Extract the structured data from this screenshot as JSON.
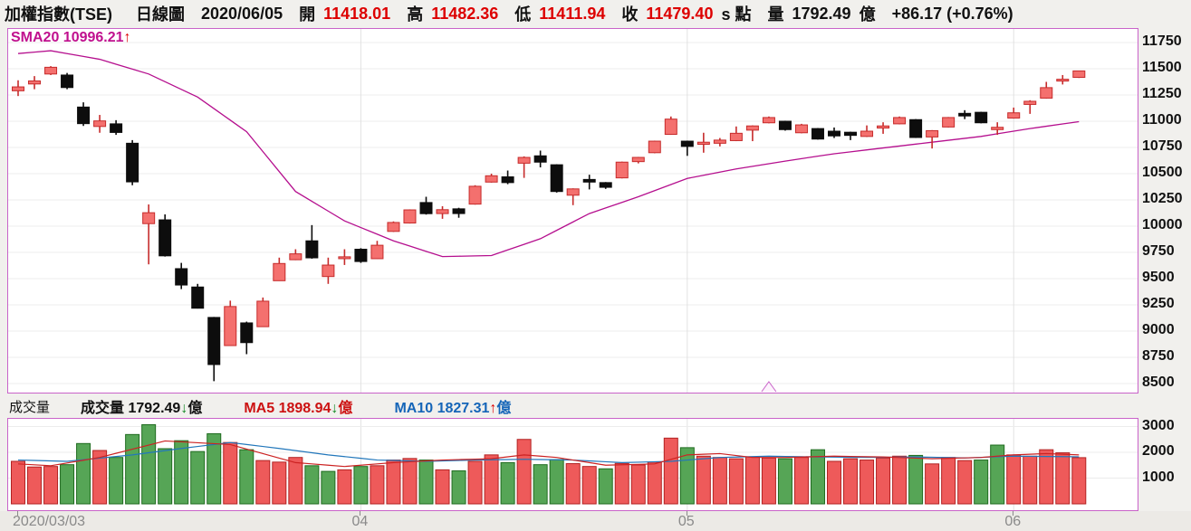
{
  "header": {
    "symbol": "加權指數(TSE)",
    "chart_type": "日線圖",
    "date": "2020/06/05",
    "open_label": "開",
    "open": "11418.01",
    "high_label": "高",
    "high": "11482.36",
    "low_label": "低",
    "low": "11411.94",
    "close_label": "收",
    "close": "11479.40",
    "suffix": "s 點",
    "volume_label": "量",
    "volume": "1792.49",
    "volume_unit": "億",
    "change": "+86.17 (+0.76%)"
  },
  "price_panel": {
    "sma_label": "SMA20 10996.21",
    "sma_arrow": "↑",
    "y_ticks": [
      11750,
      11500,
      11250,
      11000,
      10750,
      10500,
      10250,
      10000,
      9750,
      9500,
      9250,
      9000,
      8750,
      8500
    ]
  },
  "volume_panel": {
    "series_label": "成交量",
    "current_label": "成交量",
    "current_value": "1792.49",
    "current_arrow": "↓",
    "current_unit": "億",
    "ma5_label": "MA5",
    "ma5_value": "1898.94",
    "ma5_arrow": "↓",
    "ma5_unit": "億",
    "ma10_label": "MA10",
    "ma10_value": "1827.31",
    "ma10_arrow": "↑",
    "ma10_unit": "億",
    "y_ticks": [
      3000,
      2000,
      1000
    ]
  },
  "x_axis": {
    "labels": [
      {
        "text": "2020/03/03",
        "index": 0,
        "align": "left",
        "grid": false
      },
      {
        "text": "04",
        "index": 21,
        "align": "center",
        "grid": true
      },
      {
        "text": "05",
        "index": 41,
        "align": "center",
        "grid": true
      },
      {
        "text": "06",
        "index": 61,
        "align": "center",
        "grid": true
      }
    ]
  },
  "colors": {
    "up_fill": "#f4706e",
    "up_stroke": "#c62b2b",
    "down_fill": "#0d0d0d",
    "down_stroke": "#0d0d0d",
    "vol_up_fill": "#ee5a5a",
    "vol_up_stroke": "#b22222",
    "vol_down_fill": "#56a556",
    "vol_down_stroke": "#1f6b1f",
    "sma20": "#b50f8e",
    "vol_ma5": "#cc2222",
    "vol_ma10": "#2277bb",
    "panel_border": "#c963c9",
    "grid_h": "#ececec",
    "grid_v": "#e2e2e2"
  },
  "chart_data": {
    "type": "candlestick+volume",
    "title": "加權指數(TSE) 日線圖",
    "price_axis": {
      "min": 8400,
      "max": 11880,
      "tick_step": 250
    },
    "volume_axis": {
      "min": 0,
      "max": 3300,
      "ticks": [
        1000,
        2000,
        3000
      ],
      "unit": "億"
    },
    "columns": [
      "date",
      "open",
      "high",
      "low",
      "close",
      "volume_e8"
    ],
    "candles": [
      [
        "03/03",
        11290,
        11390,
        11240,
        11327,
        1650
      ],
      [
        "03/04",
        11355,
        11430,
        11305,
        11384,
        1430
      ],
      [
        "03/05",
        11450,
        11525,
        11440,
        11514,
        1450
      ],
      [
        "03/06",
        11440,
        11460,
        11305,
        11321,
        1520
      ],
      [
        "03/09",
        11135,
        11180,
        10955,
        10977,
        2340
      ],
      [
        "03/10",
        10950,
        11060,
        10890,
        11003,
        2070
      ],
      [
        "03/11",
        10975,
        11010,
        10870,
        10893,
        1800
      ],
      [
        "03/12",
        10790,
        10820,
        10390,
        10422,
        2690
      ],
      [
        "03/13",
        10024,
        10207,
        9636,
        10128,
        3070
      ],
      [
        "03/16",
        10060,
        10112,
        9710,
        9717,
        2140
      ],
      [
        "03/17",
        9595,
        9650,
        9400,
        9439,
        2450
      ],
      [
        "03/18",
        9420,
        9450,
        9215,
        9218,
        2030
      ],
      [
        "03/19",
        9130,
        9135,
        8523,
        8681,
        2720
      ],
      [
        "03/20",
        8862,
        9290,
        8858,
        9234,
        2380
      ],
      [
        "03/23",
        9078,
        9090,
        8780,
        8890,
        2100
      ],
      [
        "03/24",
        9042,
        9320,
        9040,
        9285,
        1680
      ],
      [
        "03/25",
        9480,
        9700,
        9478,
        9644,
        1620
      ],
      [
        "03/26",
        9680,
        9780,
        9676,
        9736,
        1800
      ],
      [
        "03/27",
        9860,
        10010,
        9690,
        9698,
        1480
      ],
      [
        "03/30",
        9520,
        9700,
        9450,
        9629,
        1260
      ],
      [
        "03/31",
        9690,
        9780,
        9630,
        9708,
        1320
      ],
      [
        "04/01",
        9780,
        9790,
        9650,
        9663,
        1450
      ],
      [
        "04/06",
        9690,
        9860,
        9688,
        9818,
        1480
      ],
      [
        "04/07",
        9950,
        10045,
        9945,
        10035,
        1700
      ],
      [
        "04/08",
        10030,
        10160,
        10025,
        10155,
        1760
      ],
      [
        "04/09",
        10225,
        10280,
        10110,
        10119,
        1700
      ],
      [
        "04/10",
        10120,
        10190,
        10070,
        10157,
        1320
      ],
      [
        "04/13",
        10165,
        10175,
        10080,
        10120,
        1280
      ],
      [
        "04/14",
        10210,
        10390,
        10205,
        10380,
        1650
      ],
      [
        "04/15",
        10420,
        10500,
        10415,
        10480,
        1900
      ],
      [
        "04/16",
        10470,
        10530,
        10400,
        10415,
        1600
      ],
      [
        "04/17",
        10600,
        10665,
        10460,
        10655,
        2500
      ],
      [
        "04/20",
        10670,
        10720,
        10560,
        10610,
        1520
      ],
      [
        "04/21",
        10585,
        10590,
        10320,
        10330,
        1720
      ],
      [
        "04/22",
        10295,
        10360,
        10200,
        10355,
        1560
      ],
      [
        "04/23",
        10445,
        10490,
        10350,
        10420,
        1450
      ],
      [
        "04/24",
        10415,
        10420,
        10355,
        10370,
        1360
      ],
      [
        "04/27",
        10460,
        10615,
        10455,
        10610,
        1570
      ],
      [
        "04/28",
        10615,
        10660,
        10598,
        10655,
        1510
      ],
      [
        "04/29",
        10700,
        10815,
        10695,
        10810,
        1620
      ],
      [
        "04/30",
        10875,
        11045,
        10870,
        11020,
        2550
      ],
      [
        "05/04",
        10810,
        10815,
        10670,
        10760,
        2180
      ],
      [
        "05/05",
        10780,
        10890,
        10700,
        10800,
        1850
      ],
      [
        "05/06",
        10790,
        10840,
        10760,
        10820,
        1800
      ],
      [
        "05/07",
        10815,
        10950,
        10810,
        10885,
        1750
      ],
      [
        "05/08",
        10915,
        10960,
        10810,
        10955,
        1820
      ],
      [
        "05/11",
        10985,
        11045,
        10980,
        11035,
        1780
      ],
      [
        "05/12",
        11000,
        11005,
        10910,
        10920,
        1750
      ],
      [
        "05/13",
        10890,
        10975,
        10885,
        10965,
        1800
      ],
      [
        "05/14",
        10930,
        10935,
        10825,
        10830,
        2100
      ],
      [
        "05/15",
        10905,
        10940,
        10840,
        10860,
        1650
      ],
      [
        "05/18",
        10895,
        10900,
        10820,
        10865,
        1750
      ],
      [
        "05/19",
        10855,
        10960,
        10850,
        10905,
        1700
      ],
      [
        "05/20",
        10935,
        10990,
        10880,
        10955,
        1780
      ],
      [
        "05/21",
        10975,
        11045,
        10970,
        11035,
        1850
      ],
      [
        "05/22",
        11015,
        11020,
        10840,
        10845,
        1880
      ],
      [
        "05/25",
        10850,
        10915,
        10740,
        10910,
        1550
      ],
      [
        "05/26",
        10945,
        11040,
        10940,
        11035,
        1800
      ],
      [
        "05/27",
        11075,
        11105,
        11020,
        11050,
        1680
      ],
      [
        "05/28",
        11085,
        11090,
        10980,
        10985,
        1700
      ],
      [
        "05/29",
        10920,
        10990,
        10870,
        10942,
        2280
      ],
      [
        "06/01",
        11030,
        11130,
        11025,
        11080,
        1900
      ],
      [
        "06/02",
        11160,
        11200,
        11070,
        11190,
        1850
      ],
      [
        "06/03",
        11220,
        11375,
        11215,
        11320,
        2100
      ],
      [
        "06/04",
        11390,
        11440,
        11350,
        11400,
        1980
      ],
      [
        "06/05",
        11418.01,
        11482.36,
        11411.94,
        11479.4,
        1792.49
      ]
    ],
    "sma20_last": 10996.21,
    "sma20_points": [
      [
        0,
        11645
      ],
      [
        2,
        11672
      ],
      [
        5,
        11590
      ],
      [
        8,
        11450
      ],
      [
        11,
        11230
      ],
      [
        14,
        10900
      ],
      [
        17,
        10330
      ],
      [
        20,
        10050
      ],
      [
        23,
        9860
      ],
      [
        26,
        9710
      ],
      [
        29,
        9720
      ],
      [
        32,
        9880
      ],
      [
        35,
        10120
      ],
      [
        38,
        10280
      ],
      [
        41,
        10455
      ],
      [
        44,
        10545
      ],
      [
        47,
        10620
      ],
      [
        50,
        10690
      ],
      [
        53,
        10745
      ],
      [
        56,
        10800
      ],
      [
        59,
        10855
      ],
      [
        62,
        10930
      ],
      [
        65,
        10996
      ]
    ],
    "vol_ma5_last": 1898.94,
    "vol_ma5_points": [
      [
        0,
        1550
      ],
      [
        2,
        1480
      ],
      [
        5,
        1800
      ],
      [
        9,
        2440
      ],
      [
        13,
        2300
      ],
      [
        17,
        1600
      ],
      [
        20,
        1450
      ],
      [
        23,
        1600
      ],
      [
        26,
        1700
      ],
      [
        29,
        1750
      ],
      [
        31,
        1900
      ],
      [
        33,
        1800
      ],
      [
        36,
        1500
      ],
      [
        39,
        1550
      ],
      [
        41,
        1900
      ],
      [
        43,
        1950
      ],
      [
        45,
        1800
      ],
      [
        47,
        1800
      ],
      [
        50,
        1850
      ],
      [
        53,
        1820
      ],
      [
        56,
        1750
      ],
      [
        59,
        1800
      ],
      [
        61,
        1900
      ],
      [
        63,
        1950
      ],
      [
        65,
        1899
      ]
    ],
    "vol_ma10_last": 1827.31,
    "vol_ma10_points": [
      [
        0,
        1700
      ],
      [
        3,
        1650
      ],
      [
        7,
        1900
      ],
      [
        10,
        2150
      ],
      [
        13,
        2380
      ],
      [
        16,
        2150
      ],
      [
        19,
        1900
      ],
      [
        22,
        1700
      ],
      [
        25,
        1650
      ],
      [
        28,
        1700
      ],
      [
        31,
        1730
      ],
      [
        34,
        1700
      ],
      [
        37,
        1600
      ],
      [
        40,
        1650
      ],
      [
        43,
        1800
      ],
      [
        46,
        1850
      ],
      [
        49,
        1820
      ],
      [
        52,
        1800
      ],
      [
        55,
        1820
      ],
      [
        58,
        1780
      ],
      [
        61,
        1850
      ],
      [
        65,
        1827
      ]
    ],
    "bottom_marker_index": 46
  }
}
